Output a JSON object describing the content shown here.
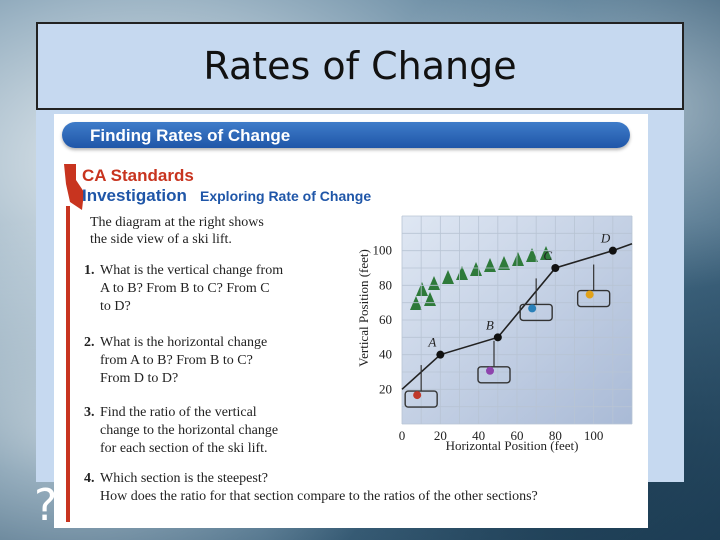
{
  "slide": {
    "title": "Rates of Change",
    "corner_mark": "?"
  },
  "textbook": {
    "banner": "Finding Rates of Change",
    "standards_line1": "CA Standards",
    "standards_line2": "Investigation",
    "exploring": "Exploring Rate of Change",
    "intro_line1": "The diagram at the right shows",
    "intro_line2": "the side view of a ski lift.",
    "questions": [
      {
        "num": "1.",
        "lines": [
          "What is the vertical change from",
          "A to B? From B to C? From C",
          "to D?"
        ]
      },
      {
        "num": "2.",
        "lines": [
          "What is the horizontal change",
          "from A to B? From B to C?",
          "From D to D?"
        ]
      },
      {
        "num": "3.",
        "lines": [
          "Find the ratio of the vertical",
          "change to the horizontal change",
          "for each section of the ski lift."
        ]
      },
      {
        "num": "4.",
        "lines": [
          "Which section is the steepest?",
          "How does the ratio for that section compare to the ratios of the other sections?"
        ]
      }
    ]
  },
  "chart_data": {
    "type": "line",
    "xlabel": "Horizontal Position (feet)",
    "ylabel": "Vertical Position (feet)",
    "x_ticks": [
      "0",
      "20",
      "40",
      "60",
      "80",
      "100"
    ],
    "y_ticks": [
      "20",
      "40",
      "60",
      "80",
      "100"
    ],
    "xlim": [
      0,
      120
    ],
    "ylim": [
      0,
      120
    ],
    "grid": true,
    "points": [
      {
        "label": "A",
        "x": 20,
        "y": 40
      },
      {
        "label": "B",
        "x": 50,
        "y": 50
      },
      {
        "label": "C",
        "x": 80,
        "y": 90
      },
      {
        "label": "D",
        "x": 110,
        "y": 100
      }
    ]
  }
}
